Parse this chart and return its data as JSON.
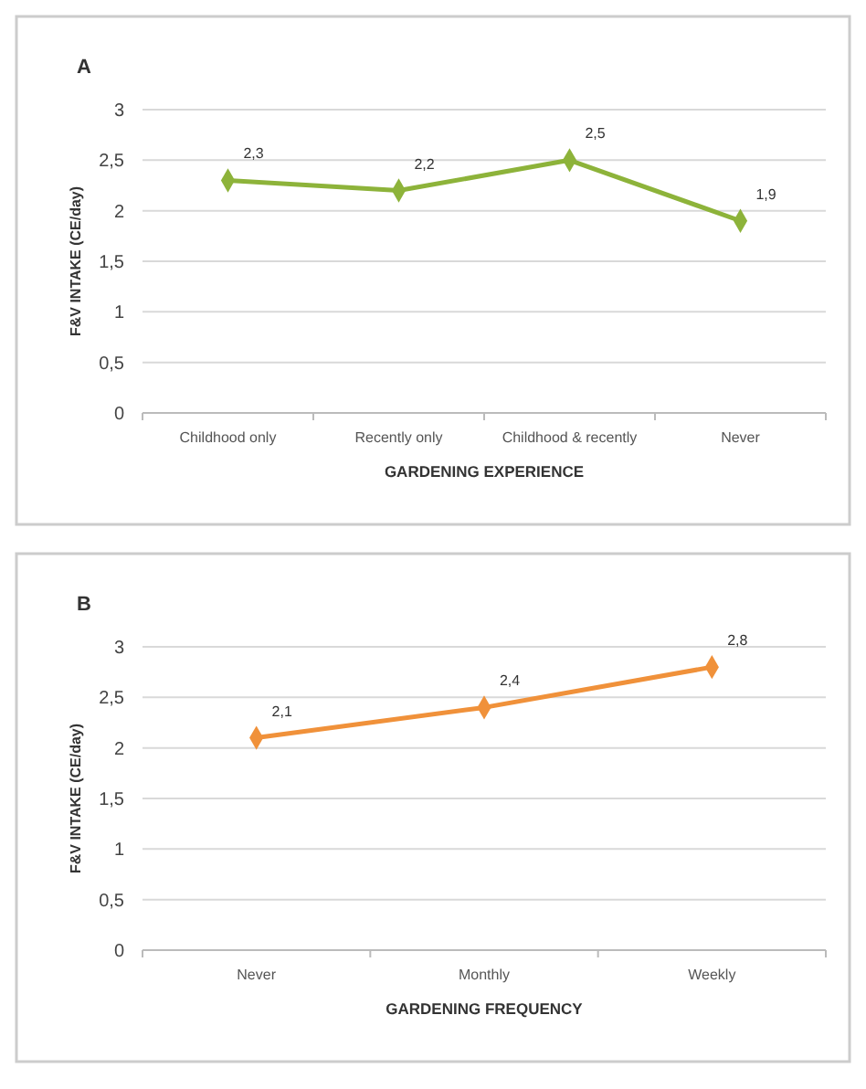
{
  "chart_data": [
    {
      "type": "line",
      "title": "A",
      "xlabel": "GARDENING EXPERIENCE",
      "ylabel": "F&V INTAKE (CE/day)",
      "categories": [
        "Childhood only",
        "Recently only",
        "Childhood & recently",
        "Never"
      ],
      "values": [
        2.3,
        2.2,
        2.5,
        1.9
      ],
      "value_labels": [
        "2,3",
        "2,2",
        "2,5",
        "1,9"
      ],
      "color": "#8db33a",
      "marker": "diamond",
      "ylim": [
        0,
        3
      ],
      "yticks": [
        0,
        {
          "value": 0.5,
          "label": "0,5"
        },
        1,
        {
          "value": 1.5,
          "label": "1,5"
        },
        2,
        {
          "value": 2.5,
          "label": "2,5"
        },
        3
      ],
      "grid": "y"
    },
    {
      "type": "line",
      "title": "B",
      "xlabel": "GARDENING FREQUENCY",
      "ylabel": "F&V INTAKE (CE/day)",
      "categories": [
        "Never",
        "Monthly",
        "Weekly"
      ],
      "values": [
        2.1,
        2.4,
        2.8
      ],
      "value_labels": [
        "2,1",
        "2,4",
        "2,8"
      ],
      "color": "#f0913a",
      "marker": "diamond",
      "ylim": [
        0,
        3
      ],
      "yticks": [
        0,
        {
          "value": 0.5,
          "label": "0,5"
        },
        1,
        {
          "value": 1.5,
          "label": "1,5"
        },
        2,
        {
          "value": 2.5,
          "label": "2,5"
        },
        3
      ],
      "grid": "y"
    }
  ]
}
